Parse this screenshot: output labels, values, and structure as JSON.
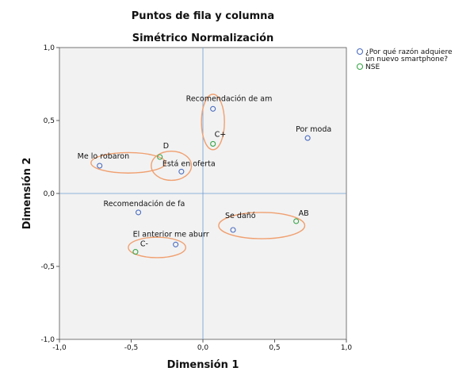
{
  "chart_data": {
    "type": "scatter",
    "title": "Puntos de fila y columna",
    "subtitle": "Simétrico Normalización",
    "xlabel": "Dimensión 1",
    "ylabel": "Dimensión 2",
    "xlim": [
      -1.0,
      1.0
    ],
    "ylim": [
      -1.0,
      1.0
    ],
    "xticks": [
      "-1,0",
      "-0,5",
      "0,0",
      "0,5",
      "1,0"
    ],
    "yticks": [
      "1,0",
      "0,5",
      "0,0",
      "-0,5",
      "-1,0"
    ],
    "plot_background": "#f2f2f2",
    "reference_line_color": "#6b9bd1",
    "highlight_color": "#f0a070",
    "legend_position": "right",
    "series": [
      {
        "name": "¿Por qué razón adquiere un nuevo smartphone?",
        "legend_lines": [
          "¿Por qué razón adquiere",
          "un nuevo smartphone?"
        ],
        "color": "#4a6cc0",
        "points": [
          {
            "label": "Recomendación de am",
            "x": 0.07,
            "y": 0.58
          },
          {
            "label": "Por moda",
            "x": 0.73,
            "y": 0.38
          },
          {
            "label": "Me lo robaron",
            "x": -0.72,
            "y": 0.19
          },
          {
            "label": "Está en oferta",
            "x": -0.15,
            "y": 0.15
          },
          {
            "label": "Recomendación de fa",
            "x": -0.45,
            "y": -0.13
          },
          {
            "label": "Se dañó",
            "x": 0.21,
            "y": -0.25
          },
          {
            "label": "El anterior me aburr",
            "x": -0.19,
            "y": -0.35
          }
        ]
      },
      {
        "name": "NSE",
        "legend_lines": [
          "NSE"
        ],
        "color": "#3aa64a",
        "points": [
          {
            "label": "C+",
            "x": 0.07,
            "y": 0.34
          },
          {
            "label": "D",
            "x": -0.3,
            "y": 0.25
          },
          {
            "label": "AB",
            "x": 0.65,
            "y": -0.19
          },
          {
            "label": "C-",
            "x": -0.47,
            "y": -0.4
          }
        ]
      }
    ],
    "highlights": [
      {
        "cx": 0.07,
        "cy": 0.49,
        "rx": 0.08,
        "ry": 0.19
      },
      {
        "cx": -0.52,
        "cy": 0.21,
        "rx": 0.26,
        "ry": 0.07
      },
      {
        "cx": -0.22,
        "cy": 0.19,
        "rx": 0.14,
        "ry": 0.1
      },
      {
        "cx": 0.41,
        "cy": -0.22,
        "rx": 0.3,
        "ry": 0.09
      },
      {
        "cx": -0.32,
        "cy": -0.37,
        "rx": 0.2,
        "ry": 0.07
      }
    ]
  }
}
